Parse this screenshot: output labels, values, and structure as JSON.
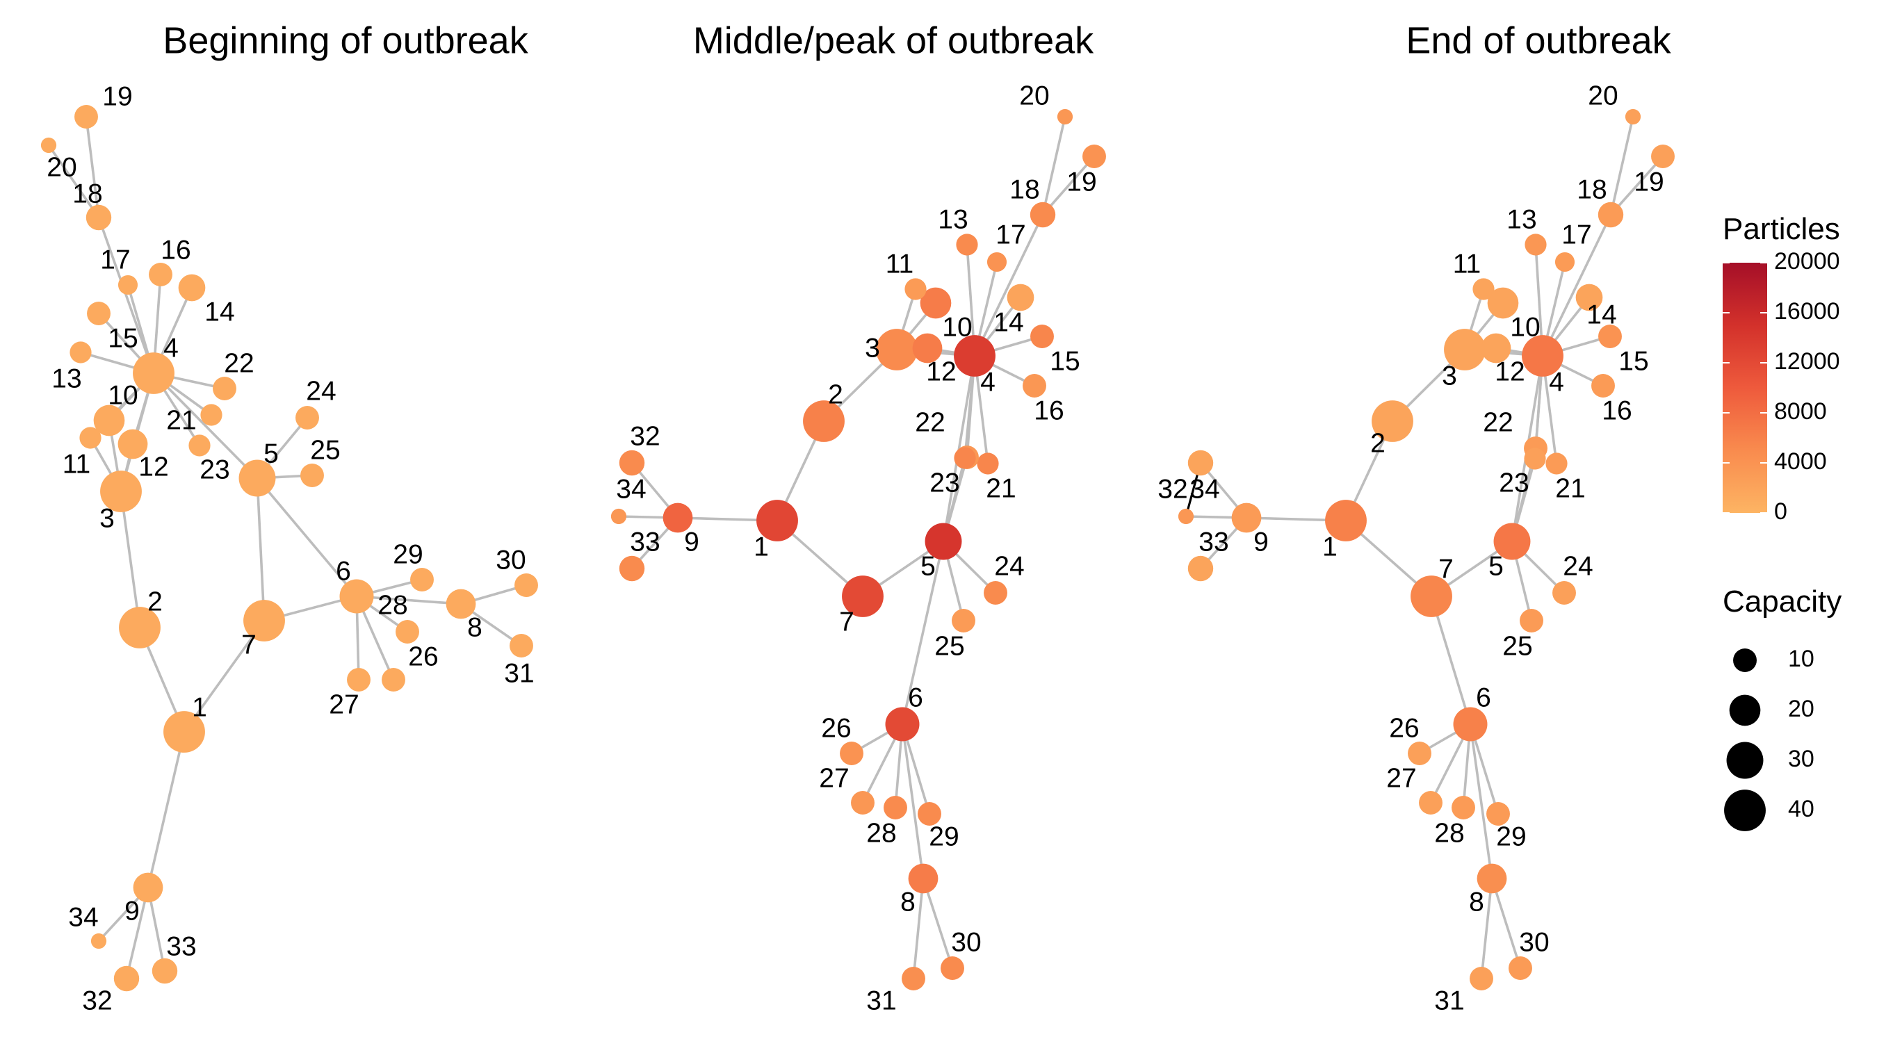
{
  "panels": [
    {
      "title": "Beginning of outbreak",
      "nodes": [
        {
          "id": "1",
          "capacity": 40,
          "particles": 1200
        },
        {
          "id": "2",
          "capacity": 40,
          "particles": 1200
        },
        {
          "id": "3",
          "capacity": 40,
          "particles": 1200
        },
        {
          "id": "4",
          "capacity": 40,
          "particles": 1200
        },
        {
          "id": "5",
          "capacity": 30,
          "particles": 1200
        },
        {
          "id": "6",
          "capacity": 25,
          "particles": 1200
        },
        {
          "id": "7",
          "capacity": 40,
          "particles": 1200
        },
        {
          "id": "8",
          "capacity": 18,
          "particles": 1200
        },
        {
          "id": "9",
          "capacity": 18,
          "particles": 1200
        },
        {
          "id": "10",
          "capacity": 20,
          "particles": 1200
        },
        {
          "id": "11",
          "capacity": 8,
          "particles": 1200
        },
        {
          "id": "12",
          "capacity": 18,
          "particles": 1200
        },
        {
          "id": "13",
          "capacity": 8,
          "particles": 1200
        },
        {
          "id": "14",
          "capacity": 14,
          "particles": 1200
        },
        {
          "id": "15",
          "capacity": 10,
          "particles": 1200
        },
        {
          "id": "16",
          "capacity": 10,
          "particles": 1200
        },
        {
          "id": "17",
          "capacity": 6,
          "particles": 1200
        },
        {
          "id": "18",
          "capacity": 12,
          "particles": 1200
        },
        {
          "id": "19",
          "capacity": 10,
          "particles": 1200
        },
        {
          "id": "20",
          "capacity": 3,
          "particles": 1200
        },
        {
          "id": "21",
          "capacity": 8,
          "particles": 1200
        },
        {
          "id": "22",
          "capacity": 10,
          "particles": 1200
        },
        {
          "id": "23",
          "capacity": 8,
          "particles": 1200
        },
        {
          "id": "24",
          "capacity": 10,
          "particles": 1200
        },
        {
          "id": "25",
          "capacity": 10,
          "particles": 1200
        },
        {
          "id": "26",
          "capacity": 10,
          "particles": 1200
        },
        {
          "id": "27",
          "capacity": 10,
          "particles": 1200
        },
        {
          "id": "28",
          "capacity": 10,
          "particles": 1200
        },
        {
          "id": "29",
          "capacity": 10,
          "particles": 1200
        },
        {
          "id": "30",
          "capacity": 10,
          "particles": 1200
        },
        {
          "id": "31",
          "capacity": 10,
          "particles": 1200
        },
        {
          "id": "32",
          "capacity": 12,
          "particles": 1200
        },
        {
          "id": "33",
          "capacity": 12,
          "particles": 1200
        },
        {
          "id": "34",
          "capacity": 3,
          "particles": 1200
        }
      ]
    },
    {
      "title": "Middle/peak of outbreak",
      "nodes": [
        {
          "id": "1",
          "capacity": 40,
          "particles": 12500
        },
        {
          "id": "2",
          "capacity": 40,
          "particles": 6000
        },
        {
          "id": "3",
          "capacity": 40,
          "particles": 5000
        },
        {
          "id": "4",
          "capacity": 40,
          "particles": 13500
        },
        {
          "id": "5",
          "capacity": 30,
          "particles": 14500
        },
        {
          "id": "6",
          "capacity": 25,
          "particles": 12000
        },
        {
          "id": "7",
          "capacity": 40,
          "particles": 12000
        },
        {
          "id": "8",
          "capacity": 18,
          "particles": 6500
        },
        {
          "id": "9",
          "capacity": 18,
          "particles": 9000
        },
        {
          "id": "10",
          "capacity": 20,
          "particles": 6500
        },
        {
          "id": "11",
          "capacity": 8,
          "particles": 3000
        },
        {
          "id": "12",
          "capacity": 18,
          "particles": 6500
        },
        {
          "id": "13",
          "capacity": 8,
          "particles": 5000
        },
        {
          "id": "14",
          "capacity": 14,
          "particles": 2000
        },
        {
          "id": "15",
          "capacity": 10,
          "particles": 5500
        },
        {
          "id": "16",
          "capacity": 10,
          "particles": 3500
        },
        {
          "id": "17",
          "capacity": 6,
          "particles": 4000
        },
        {
          "id": "18",
          "capacity": 12,
          "particles": 5000
        },
        {
          "id": "19",
          "capacity": 10,
          "particles": 4000
        },
        {
          "id": "20",
          "capacity": 3,
          "particles": 3500
        },
        {
          "id": "21",
          "capacity": 8,
          "particles": 5500
        },
        {
          "id": "22",
          "capacity": 10,
          "particles": 3500
        },
        {
          "id": "23",
          "capacity": 8,
          "particles": 5500
        },
        {
          "id": "24",
          "capacity": 10,
          "particles": 5000
        },
        {
          "id": "25",
          "capacity": 10,
          "particles": 3000
        },
        {
          "id": "26",
          "capacity": 10,
          "particles": 4000
        },
        {
          "id": "27",
          "capacity": 10,
          "particles": 3500
        },
        {
          "id": "28",
          "capacity": 10,
          "particles": 5000
        },
        {
          "id": "29",
          "capacity": 10,
          "particles": 5000
        },
        {
          "id": "30",
          "capacity": 10,
          "particles": 5000
        },
        {
          "id": "31",
          "capacity": 10,
          "particles": 4500
        },
        {
          "id": "32",
          "capacity": 12,
          "particles": 5000
        },
        {
          "id": "33",
          "capacity": 12,
          "particles": 5000
        },
        {
          "id": "34",
          "capacity": 3,
          "particles": 3500
        }
      ]
    },
    {
      "title": "End of outbreak",
      "nodes": [
        {
          "id": "1",
          "capacity": 40,
          "particles": 6000
        },
        {
          "id": "2",
          "capacity": 40,
          "particles": 2000
        },
        {
          "id": "3",
          "capacity": 40,
          "particles": 2000
        },
        {
          "id": "4",
          "capacity": 40,
          "particles": 7000
        },
        {
          "id": "5",
          "capacity": 30,
          "particles": 7000
        },
        {
          "id": "6",
          "capacity": 25,
          "particles": 6000
        },
        {
          "id": "7",
          "capacity": 40,
          "particles": 5500
        },
        {
          "id": "8",
          "capacity": 18,
          "particles": 4500
        },
        {
          "id": "9",
          "capacity": 18,
          "particles": 3000
        },
        {
          "id": "10",
          "capacity": 20,
          "particles": 2000
        },
        {
          "id": "11",
          "capacity": 8,
          "particles": 2000
        },
        {
          "id": "12",
          "capacity": 18,
          "particles": 2000
        },
        {
          "id": "13",
          "capacity": 8,
          "particles": 3500
        },
        {
          "id": "14",
          "capacity": 14,
          "particles": 2000
        },
        {
          "id": "15",
          "capacity": 10,
          "particles": 4000
        },
        {
          "id": "16",
          "capacity": 10,
          "particles": 3000
        },
        {
          "id": "17",
          "capacity": 6,
          "particles": 3000
        },
        {
          "id": "18",
          "capacity": 12,
          "particles": 3000
        },
        {
          "id": "19",
          "capacity": 10,
          "particles": 2500
        },
        {
          "id": "20",
          "capacity": 3,
          "particles": 2500
        },
        {
          "id": "21",
          "capacity": 8,
          "particles": 3000
        },
        {
          "id": "22",
          "capacity": 10,
          "particles": 3000
        },
        {
          "id": "23",
          "capacity": 8,
          "particles": 2500
        },
        {
          "id": "24",
          "capacity": 10,
          "particles": 2500
        },
        {
          "id": "25",
          "capacity": 10,
          "particles": 3000
        },
        {
          "id": "26",
          "capacity": 10,
          "particles": 2500
        },
        {
          "id": "27",
          "capacity": 10,
          "particles": 2500
        },
        {
          "id": "28",
          "capacity": 10,
          "particles": 3000
        },
        {
          "id": "29",
          "capacity": 10,
          "particles": 3000
        },
        {
          "id": "30",
          "capacity": 10,
          "particles": 3000
        },
        {
          "id": "31",
          "capacity": 10,
          "particles": 2500
        },
        {
          "id": "32",
          "capacity": 12,
          "particles": 2000
        },
        {
          "id": "33",
          "capacity": 12,
          "particles": 2000
        },
        {
          "id": "34",
          "capacity": 3,
          "particles": 3500
        }
      ]
    }
  ],
  "edges_by_panel": [
    [
      [
        "19",
        "18"
      ],
      [
        "20",
        "18"
      ],
      [
        "18",
        "4"
      ],
      [
        "17",
        "4"
      ],
      [
        "16",
        "4"
      ],
      [
        "14",
        "4"
      ],
      [
        "15",
        "4"
      ],
      [
        "13",
        "4"
      ],
      [
        "10",
        "4"
      ],
      [
        "11",
        "4"
      ],
      [
        "12",
        "4"
      ],
      [
        "3",
        "4"
      ],
      [
        "21",
        "4"
      ],
      [
        "22",
        "4"
      ],
      [
        "23",
        "4"
      ],
      [
        "5",
        "4"
      ],
      [
        "24",
        "5"
      ],
      [
        "25",
        "5"
      ],
      [
        "5",
        "6"
      ],
      [
        "5",
        "7"
      ],
      [
        "10",
        "3"
      ],
      [
        "11",
        "3"
      ],
      [
        "12",
        "3"
      ],
      [
        "3",
        "2"
      ],
      [
        "2",
        "1"
      ],
      [
        "1",
        "7"
      ],
      [
        "7",
        "6"
      ],
      [
        "6",
        "29"
      ],
      [
        "6",
        "28"
      ],
      [
        "6",
        "26"
      ],
      [
        "6",
        "27"
      ],
      [
        "6",
        "8"
      ],
      [
        "8",
        "30"
      ],
      [
        "8",
        "31"
      ],
      [
        "1",
        "9"
      ],
      [
        "9",
        "34"
      ],
      [
        "9",
        "32"
      ],
      [
        "9",
        "33"
      ]
    ],
    [
      [
        "19",
        "18"
      ],
      [
        "20",
        "18"
      ],
      [
        "18",
        "4"
      ],
      [
        "17",
        "4"
      ],
      [
        "13",
        "4"
      ],
      [
        "14",
        "4"
      ],
      [
        "15",
        "4"
      ],
      [
        "16",
        "4"
      ],
      [
        "11",
        "3"
      ],
      [
        "10",
        "3"
      ],
      [
        "12",
        "4"
      ],
      [
        "3",
        "4"
      ],
      [
        "3",
        "2"
      ],
      [
        "2",
        "1"
      ],
      [
        "1",
        "9"
      ],
      [
        "9",
        "32"
      ],
      [
        "9",
        "34"
      ],
      [
        "9",
        "33"
      ],
      [
        "1",
        "7"
      ],
      [
        "7",
        "5"
      ],
      [
        "5",
        "4"
      ],
      [
        "22",
        "4"
      ],
      [
        "23",
        "4"
      ],
      [
        "21",
        "4"
      ],
      [
        "22",
        "5"
      ],
      [
        "23",
        "5"
      ],
      [
        "5",
        "24"
      ],
      [
        "5",
        "25"
      ],
      [
        "5",
        "6"
      ],
      [
        "6",
        "26"
      ],
      [
        "6",
        "27"
      ],
      [
        "6",
        "28"
      ],
      [
        "6",
        "29"
      ],
      [
        "6",
        "8"
      ],
      [
        "8",
        "30"
      ],
      [
        "8",
        "31"
      ]
    ],
    [
      [
        "19",
        "18"
      ],
      [
        "20",
        "18"
      ],
      [
        "18",
        "4"
      ],
      [
        "17",
        "4"
      ],
      [
        "13",
        "4"
      ],
      [
        "14",
        "4"
      ],
      [
        "15",
        "4"
      ],
      [
        "16",
        "4"
      ],
      [
        "11",
        "3"
      ],
      [
        "10",
        "3"
      ],
      [
        "12",
        "4"
      ],
      [
        "3",
        "4"
      ],
      [
        "3",
        "2"
      ],
      [
        "2",
        "1"
      ],
      [
        "1",
        "9"
      ],
      [
        "9",
        "32"
      ],
      [
        "9",
        "34"
      ],
      [
        "9",
        "33"
      ],
      [
        "1",
        "7"
      ],
      [
        "7",
        "5"
      ],
      [
        "5",
        "4"
      ],
      [
        "22",
        "4"
      ],
      [
        "23",
        "4"
      ],
      [
        "21",
        "4"
      ],
      [
        "22",
        "5"
      ],
      [
        "23",
        "5"
      ],
      [
        "5",
        "24"
      ],
      [
        "5",
        "25"
      ],
      [
        "7",
        "6"
      ],
      [
        "6",
        "26"
      ],
      [
        "6",
        "27"
      ],
      [
        "6",
        "28"
      ],
      [
        "6",
        "29"
      ],
      [
        "6",
        "8"
      ],
      [
        "8",
        "30"
      ],
      [
        "8",
        "31"
      ]
    ]
  ],
  "highlight_edges": [
    [],
    [],
    [
      [
        "32",
        "34"
      ]
    ]
  ],
  "legend": {
    "particles_title": "Particles",
    "particles_ticks": [
      0,
      4000,
      8000,
      12000,
      16000,
      20000
    ],
    "capacity_title": "Capacity",
    "capacity_ticks": [
      10,
      20,
      30,
      40
    ]
  },
  "colors": {
    "edge": "#bdbdbd",
    "highlight_edge": "#000000",
    "scale": [
      "#fdb463",
      "#f98b4e",
      "#ee5a3c",
      "#d3312b",
      "#a50f28"
    ]
  }
}
